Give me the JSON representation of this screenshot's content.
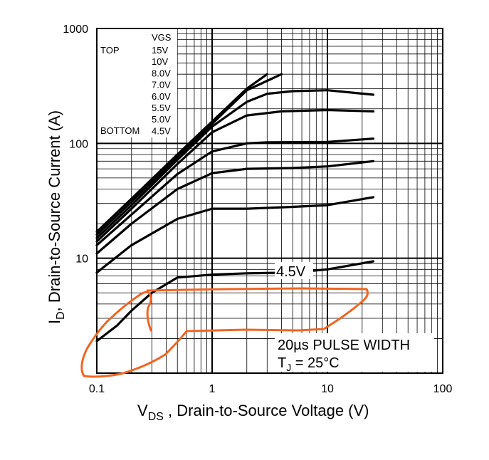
{
  "chart_data": {
    "type": "line",
    "x_scale": "log",
    "y_scale": "log",
    "xlim": [
      0.1,
      100
    ],
    "ylim": [
      1,
      1000
    ],
    "grid": true,
    "xlabel": {
      "main": "V",
      "sub": "DS",
      "rest": " , Drain-to-Source Voltage (V)"
    },
    "ylabel": {
      "main": "I",
      "sub": "D",
      "rest": ",  Drain-to-Source Current (A)"
    },
    "x_ticks": [
      "0.1",
      "1",
      "10",
      "100"
    ],
    "y_ticks": [
      "1000",
      "100",
      "10"
    ],
    "legend": {
      "header": "VGS",
      "top_label": "TOP",
      "bottom_label": "BOTTOM",
      "entries": [
        "15V",
        "10V",
        "8.0V",
        "7.0V",
        "6.0V",
        "5.5V",
        "5.0V",
        "4.5V"
      ]
    },
    "curve_label": "4.5V",
    "annotation": {
      "line1": "20µs PULSE WIDTH",
      "line2_main": "T",
      "line2_sub": "J",
      "line2_rest": " = 25°C"
    },
    "series": [
      {
        "name": "15V",
        "x": [
          0.1,
          0.2,
          0.5,
          1,
          2,
          3
        ],
        "y": [
          17,
          33,
          80,
          155,
          300,
          400
        ]
      },
      {
        "name": "10V",
        "x": [
          0.1,
          0.2,
          0.5,
          1,
          2,
          4
        ],
        "y": [
          16,
          31,
          76,
          148,
          290,
          400
        ]
      },
      {
        "name": "8.0V",
        "x": [
          0.1,
          0.2,
          0.5,
          1,
          2,
          3,
          5,
          10,
          25
        ],
        "y": [
          15,
          29,
          72,
          140,
          230,
          270,
          285,
          290,
          265
        ]
      },
      {
        "name": "7.0V",
        "x": [
          0.1,
          0.2,
          0.5,
          1,
          2,
          4,
          10,
          25
        ],
        "y": [
          14,
          27,
          66,
          125,
          175,
          190,
          195,
          190
        ]
      },
      {
        "name": "6.0V",
        "x": [
          0.1,
          0.2,
          0.5,
          1,
          2,
          3,
          10,
          25
        ],
        "y": [
          13,
          24,
          54,
          85,
          100,
          102,
          103,
          110
        ]
      },
      {
        "name": "5.5V",
        "x": [
          0.1,
          0.2,
          0.5,
          1,
          2,
          5,
          10,
          25
        ],
        "y": [
          11,
          20,
          40,
          55,
          60,
          61,
          63,
          70
        ]
      },
      {
        "name": "5.0V",
        "x": [
          0.1,
          0.2,
          0.5,
          1,
          2,
          5,
          10,
          25
        ],
        "y": [
          7.5,
          13,
          22,
          27,
          27,
          28,
          29,
          34
        ]
      },
      {
        "name": "4.5V",
        "x": [
          0.1,
          0.15,
          0.2,
          0.3,
          0.5,
          1,
          2,
          5,
          10,
          25
        ],
        "y": [
          1.9,
          2.6,
          3.5,
          5.0,
          6.8,
          7.2,
          7.4,
          7.5,
          8.0,
          9.4
        ]
      }
    ],
    "markup": {
      "color": "#f26522",
      "description_free_stroke": true
    }
  }
}
